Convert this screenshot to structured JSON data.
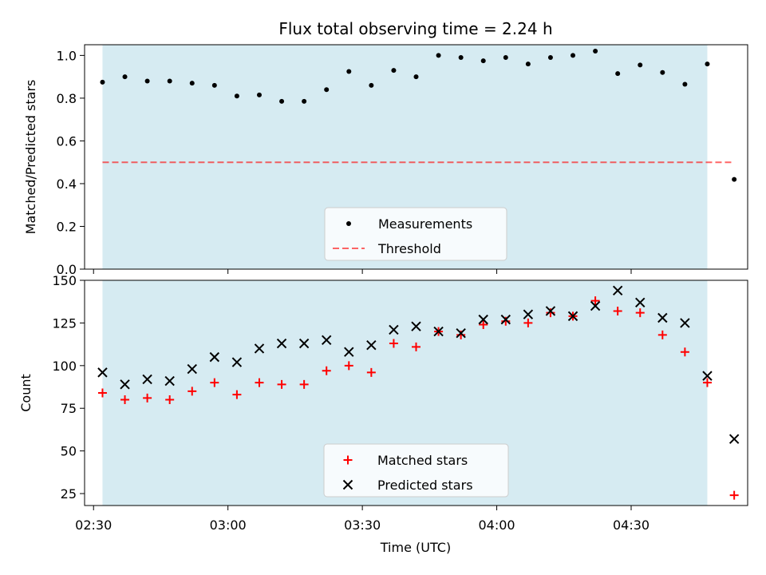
{
  "chart_data": {
    "title": "Flux total observing time = 2.24 h",
    "xlabel": "Time (UTC)",
    "x_ticks": [
      "02:30",
      "03:00",
      "03:30",
      "04:00",
      "04:30"
    ],
    "colors": {
      "span": "#add8e6",
      "measurement": "#000000",
      "threshold": "#ff0000",
      "matched": "#ff0000",
      "predicted": "#000000"
    },
    "observing_span": {
      "start": "02:32",
      "end": "04:47"
    },
    "panels": [
      {
        "type": "scatter",
        "ylabel": "Matched/Predicted stars",
        "ylim": [
          0.0,
          1.05
        ],
        "y_ticks": [
          "0.0",
          "0.2",
          "0.4",
          "0.6",
          "0.8",
          "1.0"
        ],
        "legend_position": "lower-center",
        "series": [
          {
            "name": "Measurements",
            "marker": "dot",
            "x": [
              "02:32",
              "02:37",
              "02:42",
              "02:47",
              "02:52",
              "02:57",
              "03:02",
              "03:07",
              "03:12",
              "03:17",
              "03:22",
              "03:27",
              "03:32",
              "03:37",
              "03:42",
              "03:47",
              "03:52",
              "03:57",
              "04:02",
              "04:07",
              "04:12",
              "04:17",
              "04:22",
              "04:27",
              "04:32",
              "04:37",
              "04:42",
              "04:47",
              "04:53"
            ],
            "y": [
              0.875,
              0.9,
              0.88,
              0.88,
              0.87,
              0.86,
              0.81,
              0.815,
              0.785,
              0.785,
              0.84,
              0.925,
              0.86,
              0.93,
              0.9,
              1.0,
              0.99,
              0.975,
              0.99,
              0.96,
              0.99,
              1.0,
              1.02,
              0.915,
              0.955,
              0.92,
              0.865,
              0.96,
              0.42
            ]
          },
          {
            "name": "Threshold",
            "marker": "dashed-line",
            "x": [
              "02:32",
              "04:53"
            ],
            "y": [
              0.5,
              0.5
            ]
          }
        ]
      },
      {
        "type": "scatter",
        "ylabel": "Count",
        "ylim": [
          18,
          150
        ],
        "y_ticks": [
          "25",
          "50",
          "75",
          "100",
          "125",
          "150"
        ],
        "legend_position": "lower-center",
        "series": [
          {
            "name": "Matched stars",
            "marker": "plus",
            "x": [
              "02:32",
              "02:37",
              "02:42",
              "02:47",
              "02:52",
              "02:57",
              "03:02",
              "03:07",
              "03:12",
              "03:17",
              "03:22",
              "03:27",
              "03:32",
              "03:37",
              "03:42",
              "03:47",
              "03:52",
              "03:57",
              "04:02",
              "04:07",
              "04:12",
              "04:17",
              "04:22",
              "04:27",
              "04:32",
              "04:37",
              "04:42",
              "04:47",
              "04:53"
            ],
            "y": [
              84,
              80,
              81,
              80,
              85,
              90,
              83,
              90,
              89,
              89,
              97,
              100,
              96,
              113,
              111,
              120,
              118,
              124,
              126,
              125,
              131,
              129,
              138,
              132,
              131,
              118,
              108,
              90,
              24
            ]
          },
          {
            "name": "Predicted stars",
            "marker": "x",
            "x": [
              "02:32",
              "02:37",
              "02:42",
              "02:47",
              "02:52",
              "02:57",
              "03:02",
              "03:07",
              "03:12",
              "03:17",
              "03:22",
              "03:27",
              "03:32",
              "03:37",
              "03:42",
              "03:47",
              "03:52",
              "03:57",
              "04:02",
              "04:07",
              "04:12",
              "04:17",
              "04:22",
              "04:27",
              "04:32",
              "04:37",
              "04:42",
              "04:47",
              "04:53"
            ],
            "y": [
              96,
              89,
              92,
              91,
              98,
              105,
              102,
              110,
              113,
              113,
              115,
              108,
              112,
              121,
              123,
              120,
              119,
              127,
              127,
              130,
              132,
              129,
              135,
              144,
              137,
              128,
              125,
              94,
              57
            ]
          }
        ]
      }
    ]
  }
}
